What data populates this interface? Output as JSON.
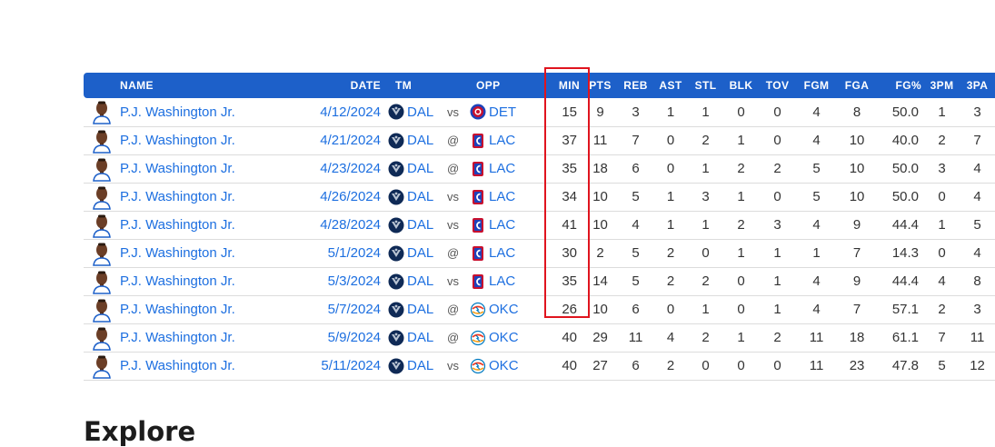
{
  "table": {
    "headers": {
      "name": "NAME",
      "date": "DATE",
      "tm": "TM",
      "opp": "OPP",
      "min": "MIN",
      "pts": "PTS",
      "reb": "REB",
      "ast": "AST",
      "stl": "STL",
      "blk": "BLK",
      "tov": "TOV",
      "fgm": "FGM",
      "fga": "FGA",
      "fg_pct": "FG%",
      "tpm": "3PM",
      "tpa": "3PA"
    },
    "rows": [
      {
        "name": "P.J. Washington Jr.",
        "date": "4/12/2024",
        "tm": "DAL",
        "ha": "vs",
        "opp": "DET",
        "opp_logo": "pistons-logo",
        "min": "15",
        "pts": "9",
        "reb": "3",
        "ast": "1",
        "stl": "1",
        "blk": "0",
        "tov": "0",
        "fgm": "4",
        "fga": "8",
        "fg_pct": "50.0",
        "tpm": "1",
        "tpa": "3"
      },
      {
        "name": "P.J. Washington Jr.",
        "date": "4/21/2024",
        "tm": "DAL",
        "ha": "@",
        "opp": "LAC",
        "opp_logo": "clippers-logo",
        "min": "37",
        "pts": "11",
        "reb": "7",
        "ast": "0",
        "stl": "2",
        "blk": "1",
        "tov": "0",
        "fgm": "4",
        "fga": "10",
        "fg_pct": "40.0",
        "tpm": "2",
        "tpa": "7"
      },
      {
        "name": "P.J. Washington Jr.",
        "date": "4/23/2024",
        "tm": "DAL",
        "ha": "@",
        "opp": "LAC",
        "opp_logo": "clippers-logo",
        "min": "35",
        "pts": "18",
        "reb": "6",
        "ast": "0",
        "stl": "1",
        "blk": "2",
        "tov": "2",
        "fgm": "5",
        "fga": "10",
        "fg_pct": "50.0",
        "tpm": "3",
        "tpa": "4"
      },
      {
        "name": "P.J. Washington Jr.",
        "date": "4/26/2024",
        "tm": "DAL",
        "ha": "vs",
        "opp": "LAC",
        "opp_logo": "clippers-logo",
        "min": "34",
        "pts": "10",
        "reb": "5",
        "ast": "1",
        "stl": "3",
        "blk": "1",
        "tov": "0",
        "fgm": "5",
        "fga": "10",
        "fg_pct": "50.0",
        "tpm": "0",
        "tpa": "4"
      },
      {
        "name": "P.J. Washington Jr.",
        "date": "4/28/2024",
        "tm": "DAL",
        "ha": "vs",
        "opp": "LAC",
        "opp_logo": "clippers-logo",
        "min": "41",
        "pts": "10",
        "reb": "4",
        "ast": "1",
        "stl": "1",
        "blk": "2",
        "tov": "3",
        "fgm": "4",
        "fga": "9",
        "fg_pct": "44.4",
        "tpm": "1",
        "tpa": "5"
      },
      {
        "name": "P.J. Washington Jr.",
        "date": "5/1/2024",
        "tm": "DAL",
        "ha": "@",
        "opp": "LAC",
        "opp_logo": "clippers-logo",
        "min": "30",
        "pts": "2",
        "reb": "5",
        "ast": "2",
        "stl": "0",
        "blk": "1",
        "tov": "1",
        "fgm": "1",
        "fga": "7",
        "fg_pct": "14.3",
        "tpm": "0",
        "tpa": "4"
      },
      {
        "name": "P.J. Washington Jr.",
        "date": "5/3/2024",
        "tm": "DAL",
        "ha": "vs",
        "opp": "LAC",
        "opp_logo": "clippers-logo",
        "min": "35",
        "pts": "14",
        "reb": "5",
        "ast": "2",
        "stl": "2",
        "blk": "0",
        "tov": "1",
        "fgm": "4",
        "fga": "9",
        "fg_pct": "44.4",
        "tpm": "4",
        "tpa": "8"
      },
      {
        "name": "P.J. Washington Jr.",
        "date": "5/7/2024",
        "tm": "DAL",
        "ha": "@",
        "opp": "OKC",
        "opp_logo": "thunder-logo",
        "min": "26",
        "pts": "10",
        "reb": "6",
        "ast": "0",
        "stl": "1",
        "blk": "0",
        "tov": "1",
        "fgm": "4",
        "fga": "7",
        "fg_pct": "57.1",
        "tpm": "2",
        "tpa": "3"
      },
      {
        "name": "P.J. Washington Jr.",
        "date": "5/9/2024",
        "tm": "DAL",
        "ha": "@",
        "opp": "OKC",
        "opp_logo": "thunder-logo",
        "min": "40",
        "pts": "29",
        "reb": "11",
        "ast": "4",
        "stl": "2",
        "blk": "1",
        "tov": "2",
        "fgm": "11",
        "fga": "18",
        "fg_pct": "61.1",
        "tpm": "7",
        "tpa": "11"
      },
      {
        "name": "P.J. Washington Jr.",
        "date": "5/11/2024",
        "tm": "DAL",
        "ha": "vs",
        "opp": "OKC",
        "opp_logo": "thunder-logo",
        "min": "40",
        "pts": "27",
        "reb": "6",
        "ast": "2",
        "stl": "0",
        "blk": "0",
        "tov": "0",
        "fgm": "11",
        "fga": "23",
        "fg_pct": "47.8",
        "tpm": "5",
        "tpa": "12"
      }
    ]
  },
  "explore_heading": "Explore",
  "colors": {
    "header_bg": "#1d60c9",
    "link": "#1d6fe0",
    "highlight_border": "#e0141e"
  }
}
